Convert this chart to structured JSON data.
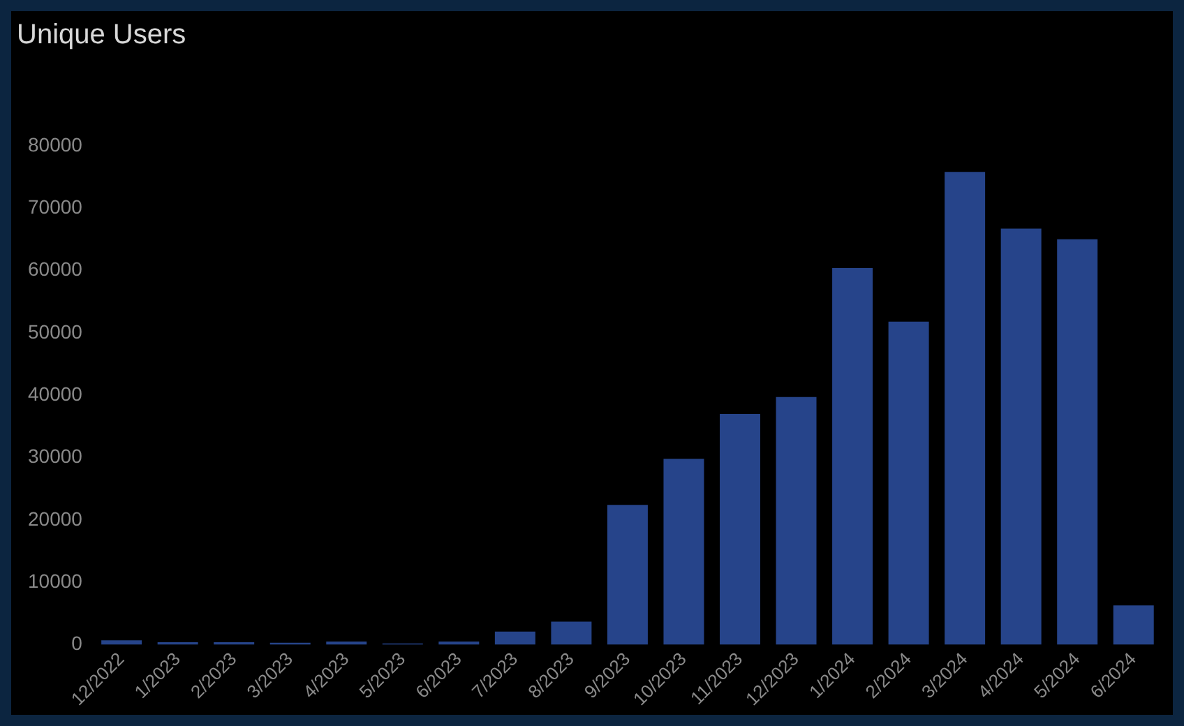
{
  "chart_data": {
    "type": "bar",
    "title": "Unique Users",
    "categories": [
      "12/2022",
      "1/2023",
      "2/2023",
      "3/2023",
      "4/2023",
      "5/2023",
      "6/2023",
      "7/2023",
      "8/2023",
      "9/2023",
      "10/2023",
      "11/2023",
      "12/2023",
      "1/2024",
      "2/2024",
      "3/2024",
      "4/2024",
      "5/2024",
      "6/2024"
    ],
    "values": [
      700,
      400,
      400,
      300,
      500,
      200,
      500,
      2100,
      3700,
      22400,
      29800,
      37000,
      39700,
      60400,
      51800,
      75800,
      66700,
      65000,
      6300
    ],
    "color": "#26448a",
    "ylim": [
      0,
      80000
    ],
    "yticks": [
      0,
      10000,
      20000,
      30000,
      40000,
      50000,
      60000,
      70000,
      80000
    ],
    "grid": false,
    "legend": false
  }
}
